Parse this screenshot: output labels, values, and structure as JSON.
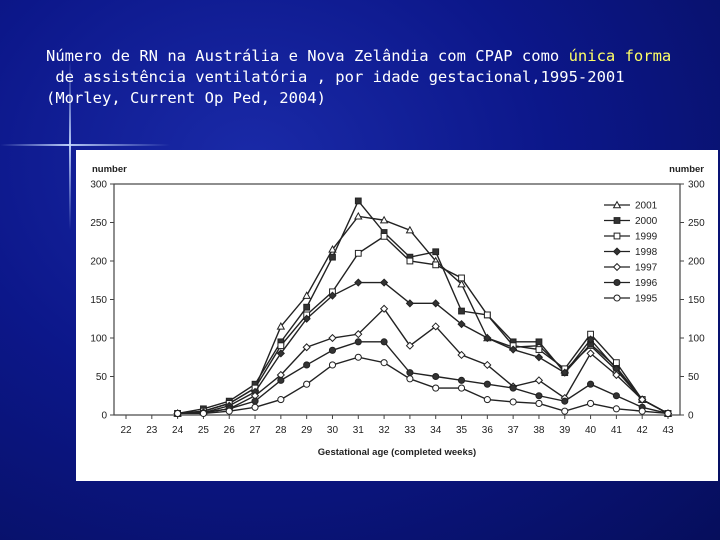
{
  "slide": {
    "title_line1_pre": "Número de RN na Austrália e Nova Zelândia com CPAP como ",
    "title_line1_highlight": "única forma",
    "title_line2": " de assistência ventilatória , por idade gestacional,1995-2001",
    "title_line3": "(Morley, Current Op Ped, 2004)",
    "background_color": "#0c178a",
    "highlight_color": "#ffff66"
  },
  "chart_data": {
    "type": "line",
    "xlabel": "Gestational age (completed weeks)",
    "ylabel_left": "number",
    "ylabel_right": "number",
    "ylim": [
      0,
      300
    ],
    "yticks": [
      0,
      50,
      100,
      150,
      200,
      250,
      300
    ],
    "categories": [
      "22",
      "23",
      "24",
      "25",
      "26",
      "27",
      "28",
      "29",
      "30",
      "31",
      "32",
      "33",
      "34",
      "35",
      "36",
      "37",
      "38",
      "39",
      "40",
      "41",
      "42",
      "43"
    ],
    "legend_position": "right",
    "series": [
      {
        "name": "2001",
        "marker": "triangle-open",
        "values": [
          null,
          null,
          2,
          5,
          15,
          35,
          115,
          155,
          215,
          258,
          253,
          240,
          200,
          170,
          100,
          88,
          90,
          58,
          90,
          58,
          20,
          2
        ]
      },
      {
        "name": "2000",
        "marker": "square-filled",
        "values": [
          null,
          null,
          2,
          8,
          18,
          40,
          95,
          140,
          205,
          278,
          237,
          205,
          212,
          135,
          130,
          95,
          95,
          55,
          92,
          62,
          20,
          2
        ]
      },
      {
        "name": "1999",
        "marker": "square-open",
        "values": [
          null,
          null,
          2,
          5,
          15,
          35,
          90,
          130,
          160,
          210,
          232,
          200,
          195,
          178,
          130,
          90,
          85,
          60,
          105,
          68,
          20,
          2
        ]
      },
      {
        "name": "1998",
        "marker": "diamond-filled",
        "values": [
          null,
          null,
          2,
          3,
          12,
          30,
          80,
          125,
          155,
          172,
          172,
          145,
          145,
          118,
          100,
          85,
          75,
          55,
          98,
          60,
          20,
          2
        ]
      },
      {
        "name": "1997",
        "marker": "diamond-open",
        "values": [
          null,
          null,
          2,
          3,
          8,
          25,
          52,
          88,
          100,
          105,
          138,
          90,
          115,
          78,
          65,
          37,
          45,
          22,
          80,
          52,
          20,
          2
        ]
      },
      {
        "name": "1996",
        "marker": "circle-filled",
        "values": [
          null,
          null,
          2,
          3,
          8,
          18,
          45,
          65,
          84,
          95,
          95,
          55,
          50,
          45,
          40,
          35,
          25,
          18,
          40,
          25,
          10,
          2
        ]
      },
      {
        "name": "1995",
        "marker": "circle-open",
        "values": [
          null,
          null,
          2,
          2,
          5,
          10,
          20,
          40,
          65,
          75,
          68,
          47,
          35,
          35,
          20,
          17,
          15,
          5,
          15,
          8,
          5,
          2
        ]
      }
    ]
  }
}
